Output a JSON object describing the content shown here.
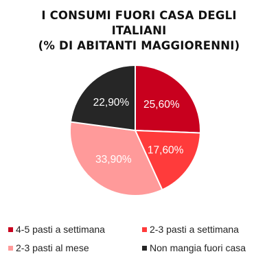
{
  "chart_data": {
    "type": "pie",
    "title_lines": [
      "I CONSUMI FUORI CASA DEGLI",
      "ITALIANI",
      "(% DI ABITANTI MAGGIORENNI)"
    ],
    "categories": [
      "4-5 pasti a settimana",
      "2-3 pasti a settimana",
      "2-3 pasti al mese",
      "Non mangia fuori casa"
    ],
    "values": [
      25.6,
      17.6,
      33.9,
      22.9
    ],
    "value_labels": [
      "25,60%",
      "17,60%",
      "33,90%",
      "22,90%"
    ],
    "colors": [
      "#c8001e",
      "#ff3b3b",
      "#ff9a9a",
      "#262626"
    ],
    "legend_position": "bottom"
  }
}
